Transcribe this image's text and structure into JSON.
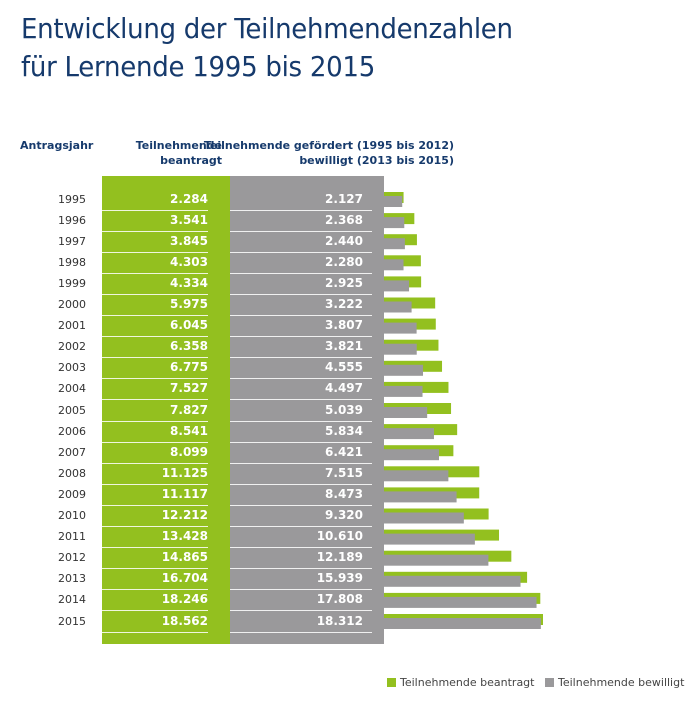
{
  "chart_data": {
    "type": "bar",
    "orientation": "horizontal",
    "title": "Entwicklung der Teilnehmendenzahlen für Lernende 1995 bis 2015",
    "title_lines": [
      "Entwicklung der Teilnehmendenzahlen",
      "für Lernende 1995 bis 2015"
    ],
    "column_headers": {
      "year": "Antragsjahr",
      "requested": [
        "Teilnehmende",
        "beantragt"
      ],
      "approved": [
        "Teilnehmende gefördert (1995 bis 2012)",
        "bewilligt (2013 bis 2015)"
      ]
    },
    "categories": [
      "1995",
      "1996",
      "1997",
      "1998",
      "1999",
      "2000",
      "2001",
      "2002",
      "2003",
      "2004",
      "2005",
      "2006",
      "2007",
      "2008",
      "2009",
      "2010",
      "2011",
      "2012",
      "2013",
      "2014",
      "2015"
    ],
    "series": [
      {
        "name": "Teilnehmende beantragt",
        "color": "#93c01f",
        "values": [
          2284,
          3541,
          3845,
          4303,
          4334,
          5975,
          6045,
          6358,
          6775,
          7527,
          7827,
          8541,
          8099,
          11125,
          11117,
          12212,
          13428,
          14865,
          16704,
          18246,
          18562
        ],
        "labels": [
          "2.284",
          "3.541",
          "3.845",
          "4.303",
          "4.334",
          "5.975",
          "6.045",
          "6.358",
          "6.775",
          "7.527",
          "7.827",
          "8.541",
          "8.099",
          "11.125",
          "11.117",
          "12.212",
          "13.428",
          "14.865",
          "16.704",
          "18.246",
          "18.562"
        ]
      },
      {
        "name": "Teilnehmende bewilligt",
        "color": "#9a999b",
        "values": [
          2127,
          2368,
          2440,
          2280,
          2925,
          3222,
          3807,
          3821,
          4555,
          4497,
          5039,
          5834,
          6421,
          7515,
          8473,
          9320,
          10610,
          12189,
          15939,
          17808,
          18312
        ],
        "labels": [
          "2.127",
          "2.368",
          "2.440",
          "2.280",
          "2.925",
          "3.222",
          "3.807",
          "3.821",
          "4.555",
          "4.497",
          "5.039",
          "5.834",
          "6.421",
          "7.515",
          "8.473",
          "9.320",
          "10.610",
          "12.189",
          "15.939",
          "17.808",
          "18.312"
        ]
      }
    ],
    "legend_position": "bottom-right",
    "grid": false
  }
}
